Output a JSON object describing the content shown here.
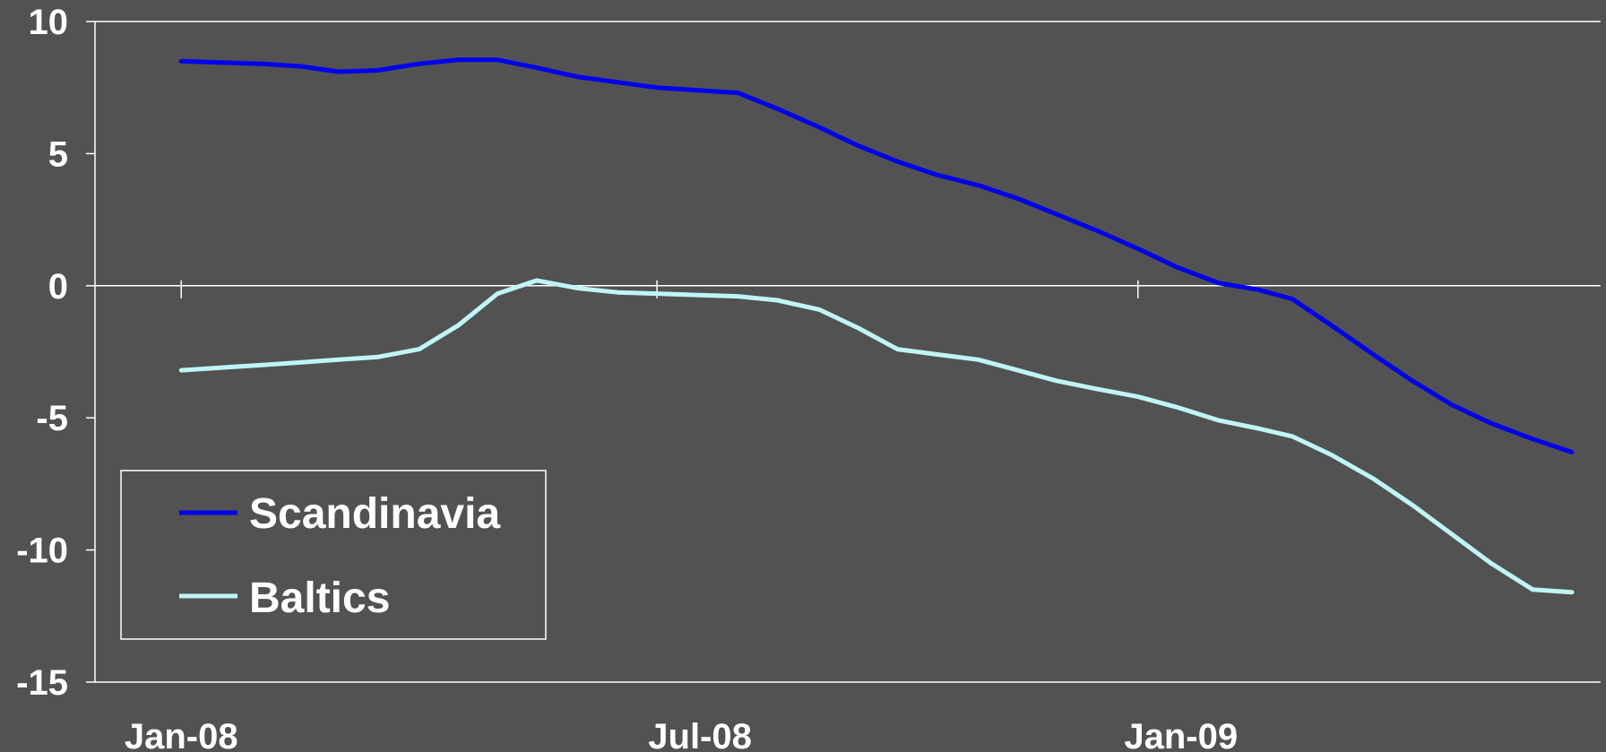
{
  "chart_data": {
    "type": "line",
    "title": "",
    "xlabel": "",
    "ylabel": "",
    "ylim": [
      -15,
      10
    ],
    "yticks": [
      "10",
      "5",
      "0",
      "-5",
      "-10",
      "-15"
    ],
    "x_tick_labels": [
      "Jan-08",
      "Jul-08",
      "Jan-09"
    ],
    "x_range": [
      "Jan-08",
      "Apr-09"
    ],
    "grid": false,
    "legend_position": "bottom-left",
    "series": [
      {
        "name": "Scandinavia",
        "color": "#0000ee",
        "points": [
          [
            "2008-01-01",
            8.5
          ],
          [
            "2008-01-16",
            8.45
          ],
          [
            "2008-02-01",
            8.4
          ],
          [
            "2008-02-16",
            8.3
          ],
          [
            "2008-03-01",
            8.1
          ],
          [
            "2008-03-16",
            8.15
          ],
          [
            "2008-04-01",
            8.4
          ],
          [
            "2008-04-16",
            8.55
          ],
          [
            "2008-05-01",
            8.55
          ],
          [
            "2008-05-16",
            8.25
          ],
          [
            "2008-06-01",
            7.9
          ],
          [
            "2008-06-16",
            7.7
          ],
          [
            "2008-07-01",
            7.5
          ],
          [
            "2008-07-16",
            7.4
          ],
          [
            "2008-08-01",
            7.3
          ],
          [
            "2008-08-16",
            6.7
          ],
          [
            "2008-09-01",
            6.0
          ],
          [
            "2008-09-16",
            5.3
          ],
          [
            "2008-10-01",
            4.7
          ],
          [
            "2008-10-16",
            4.2
          ],
          [
            "2008-11-01",
            3.8
          ],
          [
            "2008-11-16",
            3.3
          ],
          [
            "2008-12-01",
            2.7
          ],
          [
            "2008-12-16",
            2.1
          ],
          [
            "2009-01-01",
            1.4
          ],
          [
            "2009-01-16",
            0.7
          ],
          [
            "2009-02-01",
            0.1
          ],
          [
            "2009-02-16",
            -0.15
          ],
          [
            "2009-03-01",
            -0.5
          ],
          [
            "2009-03-16",
            -1.5
          ],
          [
            "2009-04-01",
            -2.6
          ],
          [
            "2009-04-16",
            -3.6
          ],
          [
            "2009-05-01",
            -4.5
          ],
          [
            "2009-05-16",
            -5.2
          ],
          [
            "2009-06-01",
            -5.8
          ],
          [
            "2009-06-16",
            -6.3
          ]
        ]
      },
      {
        "name": "Baltics",
        "color": "#bff5f5",
        "points": [
          [
            "2008-01-01",
            -3.2
          ],
          [
            "2008-01-16",
            -3.1
          ],
          [
            "2008-02-01",
            -3.0
          ],
          [
            "2008-02-16",
            -2.9
          ],
          [
            "2008-03-01",
            -2.8
          ],
          [
            "2008-03-16",
            -2.7
          ],
          [
            "2008-04-01",
            -2.4
          ],
          [
            "2008-04-16",
            -1.5
          ],
          [
            "2008-05-01",
            -0.3
          ],
          [
            "2008-05-16",
            0.2
          ],
          [
            "2008-06-01",
            -0.1
          ],
          [
            "2008-06-16",
            -0.25
          ],
          [
            "2008-07-01",
            -0.3
          ],
          [
            "2008-07-16",
            -0.35
          ],
          [
            "2008-08-01",
            -0.4
          ],
          [
            "2008-08-16",
            -0.55
          ],
          [
            "2008-09-01",
            -0.9
          ],
          [
            "2008-09-16",
            -1.6
          ],
          [
            "2008-10-01",
            -2.4
          ],
          [
            "2008-10-16",
            -2.6
          ],
          [
            "2008-11-01",
            -2.8
          ],
          [
            "2008-11-16",
            -3.2
          ],
          [
            "2008-12-01",
            -3.6
          ],
          [
            "2008-12-16",
            -3.9
          ],
          [
            "2009-01-01",
            -4.2
          ],
          [
            "2009-01-16",
            -4.6
          ],
          [
            "2009-02-01",
            -5.1
          ],
          [
            "2009-02-16",
            -5.4
          ],
          [
            "2009-03-01",
            -5.7
          ],
          [
            "2009-03-16",
            -6.4
          ],
          [
            "2009-04-01",
            -7.3
          ],
          [
            "2009-04-16",
            -8.3
          ],
          [
            "2009-05-01",
            -9.4
          ],
          [
            "2009-05-16",
            -10.5
          ],
          [
            "2009-06-01",
            -11.5
          ],
          [
            "2009-06-16",
            -11.6
          ]
        ]
      }
    ]
  }
}
